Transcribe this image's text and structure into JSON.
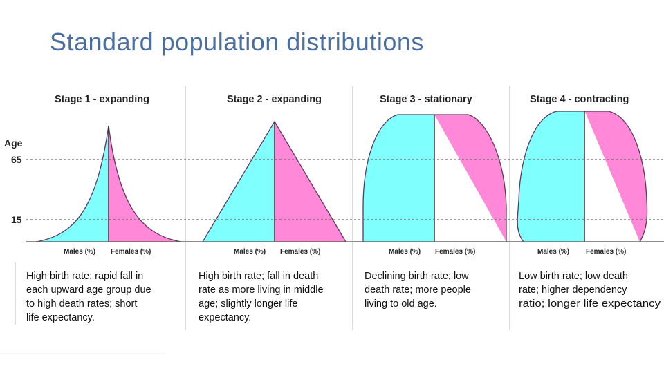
{
  "slide": {
    "title": "Standard population distributions"
  },
  "axis": {
    "age_label": "Age",
    "age_65": "65",
    "age_15": "15"
  },
  "colors": {
    "male": "#80ffff",
    "female": "#ff88d8",
    "title": "#4a6f9f"
  },
  "stages": [
    {
      "title": "Stage 1 - expanding",
      "male_label": "Males (%)",
      "female_label": "Females (%)",
      "description": [
        "High birth rate; rapid fall in",
        "each upward age group due",
        "to high death rates; short",
        "life expectancy."
      ]
    },
    {
      "title": "Stage 2 - expanding",
      "male_label": "Males (%)",
      "female_label": "Females (%)",
      "description": [
        "High birth rate; fall in death",
        "rate as more living in middle",
        "age; slightly longer life",
        "expectancy."
      ]
    },
    {
      "title": "Stage 3 - stationary",
      "male_label": "Males (%)",
      "female_label": "Females (%)",
      "description": [
        "Declining birth rate; low",
        "death rate; more people",
        "living to old age."
      ]
    },
    {
      "title": "Stage 4 - contracting",
      "male_label": "Males (%)",
      "female_label": "Females (%)",
      "description": [
        "Low birth rate; low death",
        "rate; higher dependency",
        "ratio; longer life expectancy"
      ]
    }
  ]
}
